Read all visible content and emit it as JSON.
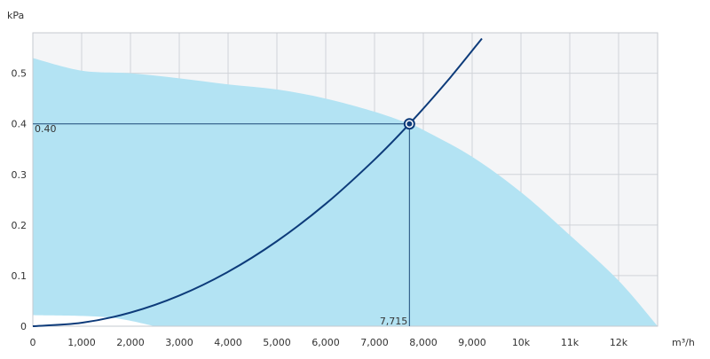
{
  "chart_data": {
    "type": "line",
    "ylabel": "kPa",
    "xlabel": "m³/h",
    "xlim": [
      0,
      12800
    ],
    "ylim": [
      0,
      0.58
    ],
    "x_ticks": [
      0,
      1000,
      2000,
      3000,
      4000,
      5000,
      6000,
      7000,
      8000,
      9000,
      10000,
      11000,
      12000
    ],
    "x_tick_labels": [
      "0",
      "1,000",
      "2,000",
      "3,000",
      "4,000",
      "5,000",
      "6,000",
      "7,000",
      "8,000",
      "9,000",
      "10k",
      "11k",
      "12k"
    ],
    "y_ticks": [
      0,
      0.1,
      0.2,
      0.3,
      0.4,
      0.5
    ],
    "y_tick_labels": [
      "0",
      "0.1",
      "0.2",
      "0.3",
      "0.4",
      "0.5"
    ],
    "grid": true,
    "operating_region": {
      "upper": [
        [
          0,
          0.53
        ],
        [
          1000,
          0.505
        ],
        [
          2000,
          0.5
        ],
        [
          3000,
          0.49
        ],
        [
          4000,
          0.478
        ],
        [
          5000,
          0.468
        ],
        [
          6000,
          0.45
        ],
        [
          7000,
          0.424
        ],
        [
          7715,
          0.4
        ],
        [
          8000,
          0.388
        ],
        [
          9000,
          0.335
        ],
        [
          10000,
          0.265
        ],
        [
          11000,
          0.18
        ],
        [
          12000,
          0.09
        ],
        [
          12800,
          0
        ]
      ],
      "lower": [
        [
          0,
          0.022
        ],
        [
          1500,
          0.018
        ],
        [
          2500,
          0
        ]
      ]
    },
    "system_curve": {
      "x": [
        0,
        1000,
        2000,
        3000,
        4000,
        5000,
        6000,
        7000,
        7715,
        8500,
        9200
      ],
      "y": [
        0,
        0.0067,
        0.0269,
        0.0605,
        0.1075,
        0.168,
        0.2419,
        0.3293,
        0.4,
        0.4856,
        0.5687
      ]
    },
    "operating_point": {
      "x": 7715,
      "y": 0.4,
      "x_label": "7,715",
      "y_label": "0.40"
    },
    "colors": {
      "region": "#b3e3f3",
      "curve": "#0d3b7a",
      "guide": "#1c4a78",
      "plot_bg": "#f4f5f7",
      "grid": "#d0d3d8"
    }
  }
}
